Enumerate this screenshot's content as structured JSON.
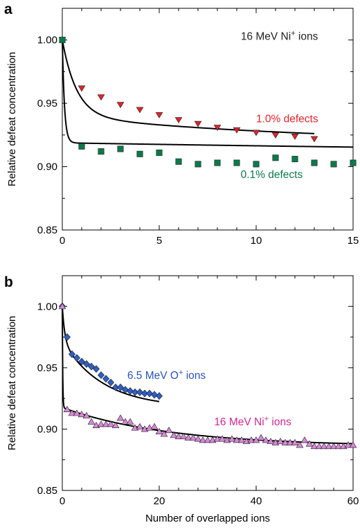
{
  "chart_data": [
    {
      "type": "scatter",
      "panel_label": "a",
      "title": "",
      "xlabel": "",
      "ylabel": "Relative defeat concentration",
      "xlim": [
        0,
        15
      ],
      "ylim": [
        0.85,
        1.025
      ],
      "x_ticks": [
        0,
        5,
        10,
        15
      ],
      "y_ticks": [
        0.85,
        0.9,
        0.95,
        1.0
      ],
      "y_tick_labels": [
        "0.85",
        "0.90",
        "0.95",
        "1.00"
      ],
      "annotations": [
        {
          "text": "16 MeV Ni",
          "sup": "+",
          "suffix": " ions",
          "color": "#222222",
          "x": 11.2,
          "y": 1.0
        },
        {
          "text": "1.0% defects",
          "sup": "",
          "suffix": "",
          "color": "#e2232a",
          "x": 11.6,
          "y": 0.935
        },
        {
          "text": "0.1% defects",
          "sup": "",
          "suffix": "",
          "color": "#0b7a4a",
          "x": 10.8,
          "y": 0.891
        }
      ],
      "series": [
        {
          "name": "1.0% defects",
          "marker": "triangle-down",
          "color": "#e2232a",
          "x": [
            0,
            1,
            2,
            3,
            4,
            5,
            6,
            7,
            8,
            9,
            10,
            11,
            12,
            13
          ],
          "y": [
            1.0,
            0.962,
            0.955,
            0.949,
            0.945,
            0.941,
            0.937,
            0.934,
            0.931,
            0.929,
            0.927,
            0.925,
            0.924,
            0.922
          ],
          "fit": {
            "a": 0.06,
            "b": 1.35,
            "c": 0.0215,
            "d": 0.08
          }
        },
        {
          "name": "0.1% defects",
          "marker": "square",
          "color": "#0b7a4a",
          "x": [
            0,
            1,
            2,
            3,
            4,
            5,
            6,
            7,
            8,
            9,
            10,
            11,
            12,
            13,
            14,
            15
          ],
          "y": [
            1.0,
            0.916,
            0.912,
            0.914,
            0.91,
            0.911,
            0.904,
            0.902,
            0.903,
            0.903,
            0.902,
            0.907,
            0.906,
            0.903,
            0.902,
            0.903
          ],
          "fit": {
            "a": 0.0812,
            "b": 9,
            "c": 0.0168,
            "d": 0.015
          }
        }
      ]
    },
    {
      "type": "scatter",
      "panel_label": "b",
      "title": "",
      "xlabel": "Number of overlapped ions",
      "ylabel": "Relative defeat concentration",
      "xlim": [
        0,
        60
      ],
      "ylim": [
        0.85,
        1.025
      ],
      "x_ticks": [
        0,
        20,
        40,
        60
      ],
      "y_ticks": [
        0.85,
        0.9,
        0.95,
        1.0
      ],
      "y_tick_labels": [
        "0.85",
        "0.90",
        "0.95",
        "1.00"
      ],
      "annotations": [
        {
          "text": "6.5 MeV O",
          "sup": "+",
          "suffix": " ions",
          "color": "#2a52be",
          "x": 21.5,
          "y": 0.941
        },
        {
          "text": "16 MeV Ni",
          "sup": "+",
          "suffix": " ions",
          "color": "#cc2a8f",
          "x": 39.3,
          "y": 0.903
        }
      ],
      "series": [
        {
          "name": "6.5 MeV O+ ions",
          "marker": "diamond",
          "color": "#2f5fc4",
          "x": [
            0,
            1,
            2,
            3,
            4,
            5,
            6,
            7,
            8,
            9,
            10,
            11,
            12,
            13,
            14,
            15,
            16,
            17,
            18,
            19,
            20
          ],
          "y": [
            1.0,
            0.975,
            0.961,
            0.958,
            0.955,
            0.953,
            0.951,
            0.949,
            0.944,
            0.941,
            0.938,
            0.934,
            0.934,
            0.932,
            0.931,
            0.93,
            0.93,
            0.929,
            0.929,
            0.928,
            0.927
          ],
          "fit": {
            "a": 0.028,
            "b": 2.0,
            "c": 0.0545,
            "d": 0.12
          }
        },
        {
          "name": "16 MeV Ni+ ions",
          "marker": "triangle-up",
          "color": "#d88ad8",
          "x": [
            0,
            1,
            2,
            3,
            4,
            5,
            6,
            7,
            8,
            9,
            10,
            11,
            12,
            13,
            14,
            15,
            16,
            17,
            18,
            19,
            20,
            21,
            22,
            23,
            24,
            25,
            26,
            27,
            28,
            29,
            30,
            31,
            32,
            33,
            34,
            35,
            36,
            37,
            38,
            39,
            40,
            41,
            42,
            43,
            44,
            45,
            46,
            47,
            48,
            49,
            50,
            51,
            52,
            53,
            54,
            55,
            56,
            57,
            58,
            59,
            60
          ],
          "y": [
            1.0,
            0.916,
            0.913,
            0.913,
            0.912,
            0.911,
            0.906,
            0.903,
            0.904,
            0.904,
            0.904,
            0.903,
            0.909,
            0.906,
            0.906,
            0.901,
            0.902,
            0.9,
            0.901,
            0.902,
            0.898,
            0.896,
            0.899,
            0.895,
            0.894,
            0.894,
            0.893,
            0.893,
            0.892,
            0.891,
            0.891,
            0.891,
            0.892,
            0.892,
            0.891,
            0.892,
            0.891,
            0.891,
            0.89,
            0.891,
            0.891,
            0.893,
            0.891,
            0.89,
            0.889,
            0.89,
            0.889,
            0.889,
            0.889,
            0.887,
            0.891,
            0.888,
            0.886,
            0.886,
            0.886,
            0.886,
            0.886,
            0.886,
            0.886,
            0.887,
            0.887
          ],
          "fit": {
            "a": 0.0825,
            "b": 12,
            "c": 0.0315,
            "d": 0.045
          }
        }
      ]
    }
  ]
}
